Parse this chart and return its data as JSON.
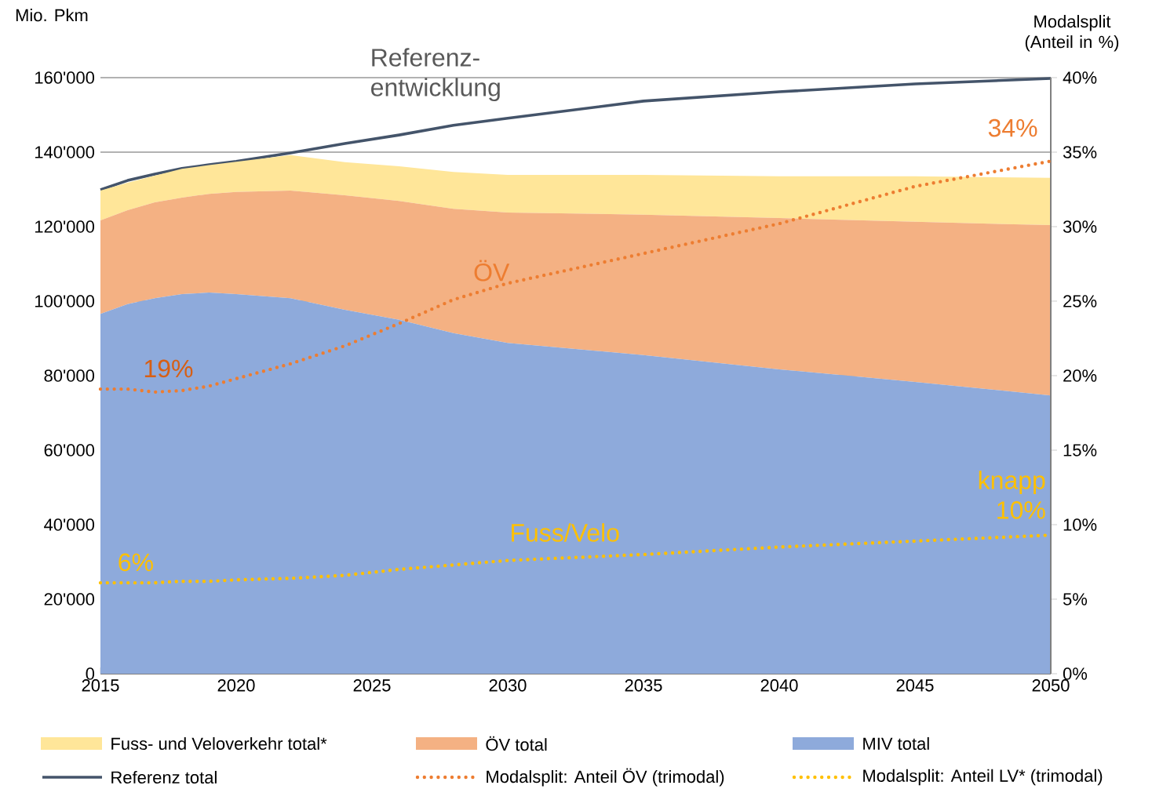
{
  "chart_data": {
    "type": "area",
    "stacked": true,
    "ylabel": "Mio. Pkm",
    "y2label": "Modalsplit (Anteil in %)",
    "x": [
      2015,
      2016,
      2017,
      2018,
      2019,
      2020,
      2022,
      2024,
      2026,
      2028,
      2030,
      2035,
      2040,
      2045,
      2050
    ],
    "series": [
      {
        "name": "MIV total",
        "color": "#8eaadb",
        "values": [
          96600,
          99200,
          100800,
          101900,
          102300,
          101900,
          100800,
          97700,
          95000,
          91400,
          88800,
          85500,
          81700,
          78300,
          74700
        ]
      },
      {
        "name": "ÖV total",
        "color": "#f4b183",
        "values": [
          25100,
          25200,
          25700,
          25900,
          26500,
          27400,
          28900,
          30700,
          31900,
          33400,
          35000,
          37700,
          40600,
          43000,
          45700
        ]
      },
      {
        "name": "Fuss- und Veloverkehr total*",
        "color": "#ffe699",
        "values": [
          8000,
          7400,
          7200,
          7700,
          7700,
          8100,
          9500,
          8900,
          9300,
          9900,
          10100,
          10700,
          11200,
          12200,
          12700
        ]
      },
      {
        "name": "Referenz total",
        "type": "line",
        "color": "#44546a",
        "line_style": "solid",
        "values": [
          129900,
          132400,
          134100,
          135600,
          136600,
          137500,
          139800,
          142300,
          144600,
          147200,
          149100,
          153700,
          156200,
          158300,
          159800
        ]
      },
      {
        "name": "Modalsplit: Anteil ÖV (trimodal)",
        "type": "line",
        "axis": "y2",
        "color": "#ed7d31",
        "line_style": "dotted",
        "values": [
          19.1,
          19.1,
          18.9,
          19.0,
          19.3,
          19.8,
          20.8,
          22.0,
          23.5,
          25.1,
          26.2,
          28.2,
          30.2,
          32.7,
          34.4
        ]
      },
      {
        "name": "Modalsplit: Anteil LV* (trimodal)",
        "type": "line",
        "axis": "y2",
        "color": "#ffc000",
        "line_style": "dotted",
        "values": [
          6.1,
          6.1,
          6.1,
          6.2,
          6.2,
          6.3,
          6.4,
          6.6,
          7.0,
          7.3,
          7.6,
          8.0,
          8.5,
          8.9,
          9.3
        ]
      }
    ],
    "xlim": [
      2015,
      2050
    ],
    "xticks": [
      2015,
      2020,
      2025,
      2030,
      2035,
      2040,
      2045,
      2050
    ],
    "ylim": [
      0,
      160000
    ],
    "yticks": [
      {
        "value": 0,
        "label": "0"
      },
      {
        "value": 20000,
        "label": "20'000"
      },
      {
        "value": 40000,
        "label": "40'000"
      },
      {
        "value": 60000,
        "label": "60'000"
      },
      {
        "value": 80000,
        "label": "80'000"
      },
      {
        "value": 100000,
        "label": "100'000"
      },
      {
        "value": 120000,
        "label": "120'000"
      },
      {
        "value": 140000,
        "label": "140'000"
      },
      {
        "value": 160000,
        "label": "160'000"
      }
    ],
    "y2lim": [
      0,
      40
    ],
    "y2ticks": [
      {
        "value": 0,
        "label": "0%"
      },
      {
        "value": 5,
        "label": "5%"
      },
      {
        "value": 10,
        "label": "10%"
      },
      {
        "value": 15,
        "label": "15%"
      },
      {
        "value": 20,
        "label": "20%"
      },
      {
        "value": 25,
        "label": "25%"
      },
      {
        "value": 30,
        "label": "30%"
      },
      {
        "value": 35,
        "label": "35%"
      },
      {
        "value": 40,
        "label": "40%"
      }
    ],
    "grid": "y",
    "legend": "bottom",
    "annotations": [
      "Referenz-entwicklung",
      "ÖV",
      "19%",
      "34%",
      "6%",
      "Fuss/Velo",
      "knapp 10%"
    ]
  }
}
